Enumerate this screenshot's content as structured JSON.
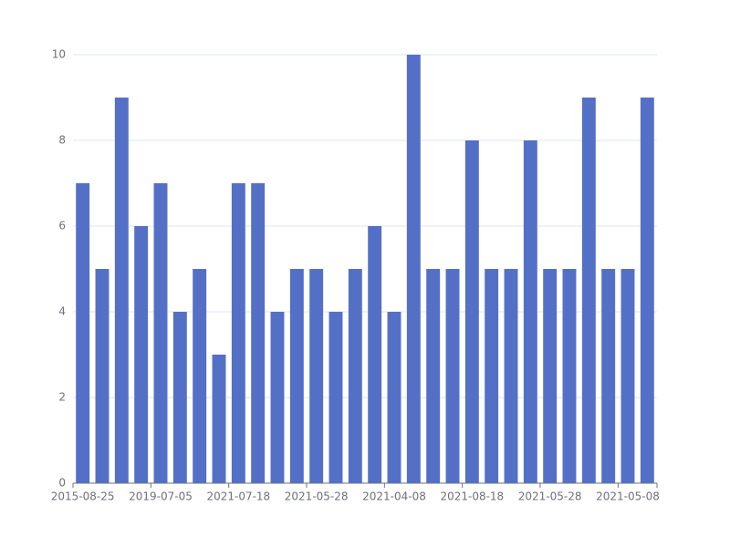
{
  "chart_data": {
    "type": "bar",
    "categories": [
      "2015-08-25",
      null,
      null,
      null,
      "2019-07-05",
      null,
      null,
      null,
      "2021-07-18",
      null,
      null,
      null,
      "2021-05-28",
      null,
      null,
      null,
      "2021-04-08",
      null,
      null,
      null,
      "2021-08-18",
      null,
      null,
      null,
      "2021-05-28",
      null,
      null,
      null,
      "2021-05-08",
      null
    ],
    "values": [
      7,
      5,
      9,
      6,
      7,
      4,
      5,
      3,
      7,
      7,
      4,
      5,
      5,
      4,
      5,
      6,
      4,
      10,
      5,
      5,
      8,
      5,
      5,
      8,
      5,
      5,
      9,
      5,
      5,
      9
    ],
    "color": "#5470c6",
    "ylim": [
      0,
      10
    ],
    "yticks": [
      0,
      2,
      4,
      6,
      8,
      10
    ],
    "grid": true
  }
}
